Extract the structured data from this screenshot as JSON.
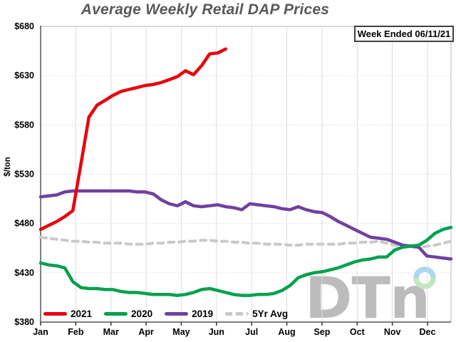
{
  "chart_data": {
    "type": "line",
    "title": "Average Weekly Retail DAP Prices",
    "annotation": "Week Ended 06/11/21",
    "ylabel": "$/ton",
    "ylim": [
      380,
      680
    ],
    "ytick_step": 50,
    "y_ticks": [
      "$680",
      "$630",
      "$580",
      "$530",
      "$480",
      "$430",
      "$380"
    ],
    "x_ticks": [
      "Jan",
      "Feb",
      "Mar",
      "Apr",
      "May",
      "Jun",
      "Jul",
      "Aug",
      "Sep",
      "Oct",
      "Nov",
      "Dec"
    ],
    "x_unit": "week-of-year",
    "grid": true,
    "legend_position": "inside-bottom-left",
    "watermark": "DTn",
    "series": [
      {
        "name": "2021",
        "color": "#e8000d",
        "style": "solid",
        "start_week": 0,
        "values": [
          474,
          478,
          482,
          487,
          493,
          540,
          588,
          600,
          605,
          610,
          614,
          616,
          618,
          620,
          621,
          623,
          626,
          629,
          635,
          631,
          640,
          652,
          653,
          657
        ]
      },
      {
        "name": "2020",
        "color": "#00a14e",
        "style": "solid",
        "start_week": 0,
        "values": [
          440,
          438,
          437,
          435,
          421,
          415,
          414,
          414,
          413,
          413,
          411,
          410,
          410,
          409,
          408,
          408,
          408,
          407,
          408,
          410,
          413,
          414,
          412,
          410,
          408,
          407,
          407,
          408,
          408,
          409,
          412,
          417,
          425,
          428,
          430,
          431,
          433,
          435,
          438,
          441,
          443,
          444,
          446,
          446,
          453,
          456,
          457,
          458,
          463,
          470,
          474,
          476
        ]
      },
      {
        "name": "2019",
        "color": "#7040a0",
        "style": "solid",
        "start_week": 0,
        "values": [
          507,
          508,
          509,
          512,
          513,
          513,
          513,
          513,
          513,
          513,
          513,
          513,
          512,
          512,
          510,
          504,
          500,
          498,
          502,
          498,
          497,
          498,
          499,
          497,
          496,
          494,
          500,
          499,
          498,
          497,
          495,
          494,
          497,
          494,
          492,
          491,
          487,
          482,
          478,
          474,
          470,
          466,
          465,
          464,
          461,
          458,
          457,
          456,
          447,
          446,
          445,
          444
        ]
      },
      {
        "name": "5Yr Avg",
        "color": "#c9c9c9",
        "style": "dashed",
        "start_week": 0,
        "values": [
          466,
          465,
          464,
          463,
          462,
          462,
          461,
          461,
          460,
          460,
          460,
          459,
          459,
          459,
          460,
          460,
          461,
          461,
          462,
          462,
          463,
          463,
          462,
          462,
          461,
          461,
          460,
          460,
          459,
          459,
          459,
          458,
          458,
          459,
          459,
          459,
          459,
          459,
          460,
          460,
          461,
          461,
          462,
          460,
          458,
          457,
          456,
          456,
          457,
          458,
          460,
          462
        ]
      }
    ],
    "colors": {
      "title_text": "#595959",
      "axis_line": "#7f7f7f",
      "grid_line": "#dcdcdc",
      "watermark_gray": "#bcbcbc",
      "logo_ring_blue": "#a8d9ee",
      "logo_ring_green": "#c3e6bd"
    }
  }
}
